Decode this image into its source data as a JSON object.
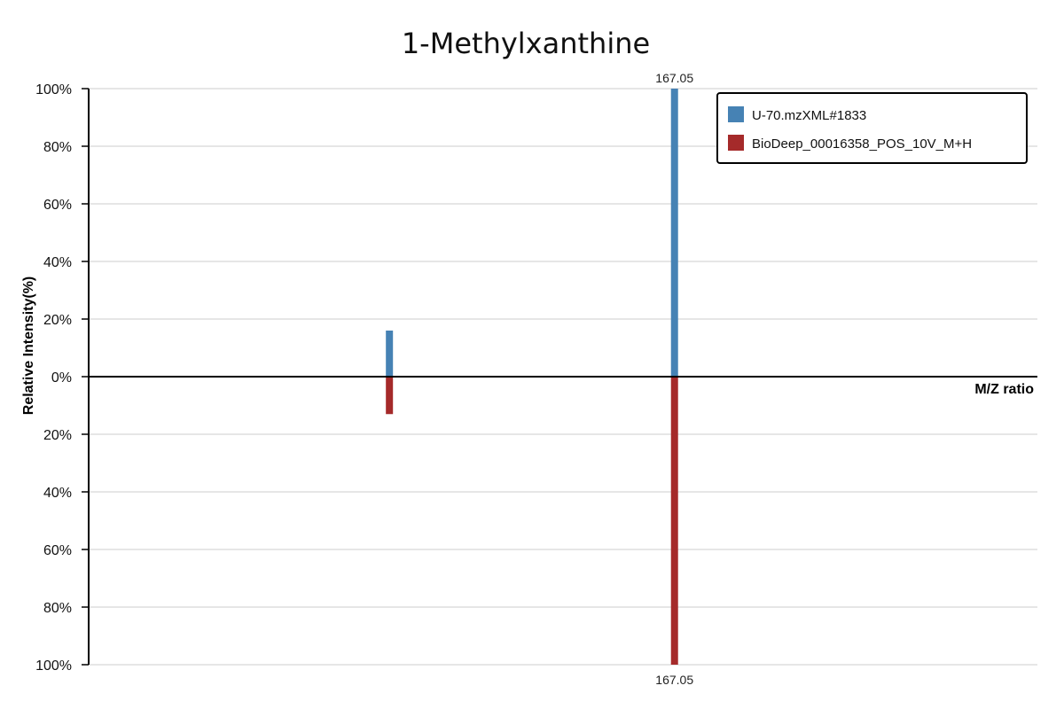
{
  "chart_data": {
    "type": "bar",
    "title": "1-Methylxanthine",
    "xlabel": "M/Z ratio",
    "ylabel": "Relative Intensity(%)",
    "ylim": [
      -100,
      100
    ],
    "yticks": [
      {
        "value": 100,
        "label": "100%"
      },
      {
        "value": 80,
        "label": "80%"
      },
      {
        "value": 60,
        "label": "60%"
      },
      {
        "value": 40,
        "label": "40%"
      },
      {
        "value": 20,
        "label": "20%"
      },
      {
        "value": 0,
        "label": "0%"
      },
      {
        "value": -20,
        "label": "20%"
      },
      {
        "value": -40,
        "label": "40%"
      },
      {
        "value": -60,
        "label": "60%"
      },
      {
        "value": -80,
        "label": "80%"
      },
      {
        "value": -100,
        "label": "100%"
      }
    ],
    "grid": true,
    "legend_position": "top-right",
    "series": [
      {
        "name": "U-70.mzXML#1833",
        "color": "#4682b4",
        "direction": "up",
        "peaks": [
          {
            "mz": 149.02,
            "intensity": 16
          },
          {
            "mz": 167.05,
            "intensity": 100,
            "label": "167.05"
          }
        ]
      },
      {
        "name": "BioDeep_00016358_POS_10V_M+H",
        "color": "#a52a2a",
        "direction": "down",
        "peaks": [
          {
            "mz": 149.02,
            "intensity": 13
          },
          {
            "mz": 167.05,
            "intensity": 100,
            "label": "167.05"
          }
        ]
      }
    ]
  }
}
